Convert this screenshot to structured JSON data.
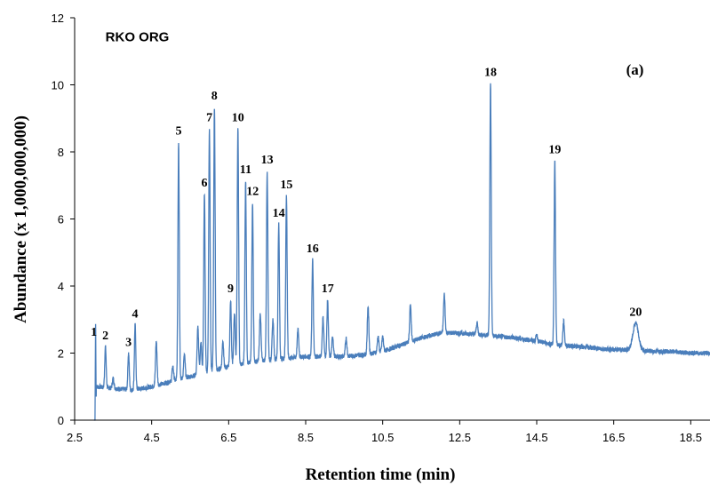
{
  "chart_data": {
    "type": "line",
    "title": "",
    "xlabel": "Retention time  (min)",
    "ylabel": "Abundance (x 1,000,000,000)",
    "xlim": [
      2.5,
      19.0
    ],
    "ylim": [
      0,
      12
    ],
    "x_ticks": [
      "2.5",
      "4.5",
      "6.5",
      "8.5",
      "10.5",
      "12.5",
      "14.5",
      "16.5",
      "18.5"
    ],
    "y_ticks": [
      "0",
      "2",
      "4",
      "6",
      "8",
      "10",
      "12"
    ],
    "grid": false,
    "legend": "none",
    "line_color": "#4a7ebb",
    "annotations": [
      {
        "text": "RKO ORG",
        "x": 3.3,
        "y": 11.3
      },
      {
        "text": "(a)",
        "x": 17.05,
        "y": 10.3
      }
    ],
    "peaks": [
      {
        "label": "1",
        "x": 3.0,
        "y": 2.3
      },
      {
        "label": "2",
        "x": 3.3,
        "y": 2.2
      },
      {
        "label": "3",
        "x": 3.9,
        "y": 2.0
      },
      {
        "label": "4",
        "x": 4.07,
        "y": 2.85
      },
      {
        "label": "5",
        "x": 5.2,
        "y": 8.3
      },
      {
        "label": "6",
        "x": 5.87,
        "y": 6.75
      },
      {
        "label": "7",
        "x": 6.0,
        "y": 8.7
      },
      {
        "label": "8",
        "x": 6.13,
        "y": 9.35
      },
      {
        "label": "9",
        "x": 6.55,
        "y": 3.6
      },
      {
        "label": "10",
        "x": 6.74,
        "y": 8.7
      },
      {
        "label": "11",
        "x": 6.94,
        "y": 7.15
      },
      {
        "label": "12",
        "x": 7.12,
        "y": 6.5
      },
      {
        "label": "13",
        "x": 7.5,
        "y": 7.45
      },
      {
        "label": "14",
        "x": 7.8,
        "y": 5.85
      },
      {
        "label": "15",
        "x": 8.0,
        "y": 6.7
      },
      {
        "label": "16",
        "x": 8.68,
        "y": 4.8
      },
      {
        "label": "17",
        "x": 9.07,
        "y": 3.6
      },
      {
        "label": "18",
        "x": 13.3,
        "y": 10.05
      },
      {
        "label": "19",
        "x": 14.97,
        "y": 7.75
      },
      {
        "label": "20",
        "x": 17.07,
        "y": 2.9
      }
    ],
    "minor_peaks": [
      {
        "x": 3.5,
        "y": 1.25
      },
      {
        "x": 4.62,
        "y": 2.35
      },
      {
        "x": 5.05,
        "y": 1.6
      },
      {
        "x": 5.35,
        "y": 1.95
      },
      {
        "x": 5.7,
        "y": 2.75
      },
      {
        "x": 5.78,
        "y": 2.3
      },
      {
        "x": 6.35,
        "y": 2.3
      },
      {
        "x": 6.65,
        "y": 3.2
      },
      {
        "x": 7.32,
        "y": 3.2
      },
      {
        "x": 7.65,
        "y": 3.0
      },
      {
        "x": 8.3,
        "y": 2.7
      },
      {
        "x": 8.95,
        "y": 3.05
      },
      {
        "x": 9.2,
        "y": 2.5
      },
      {
        "x": 9.55,
        "y": 2.45
      },
      {
        "x": 10.12,
        "y": 3.4
      },
      {
        "x": 10.38,
        "y": 2.5
      },
      {
        "x": 10.5,
        "y": 2.5
      },
      {
        "x": 11.22,
        "y": 3.45
      },
      {
        "x": 12.1,
        "y": 3.75
      },
      {
        "x": 12.95,
        "y": 2.9
      },
      {
        "x": 14.5,
        "y": 2.55
      },
      {
        "x": 15.2,
        "y": 2.95
      }
    ],
    "baseline": [
      {
        "x": 3.0,
        "y": 0.0
      },
      {
        "x": 3.05,
        "y": 1.0
      },
      {
        "x": 3.5,
        "y": 0.95
      },
      {
        "x": 4.0,
        "y": 0.9
      },
      {
        "x": 4.5,
        "y": 1.0
      },
      {
        "x": 5.0,
        "y": 1.15
      },
      {
        "x": 5.5,
        "y": 1.3
      },
      {
        "x": 6.0,
        "y": 1.45
      },
      {
        "x": 6.5,
        "y": 1.6
      },
      {
        "x": 7.0,
        "y": 1.7
      },
      {
        "x": 7.5,
        "y": 1.8
      },
      {
        "x": 8.0,
        "y": 1.85
      },
      {
        "x": 8.5,
        "y": 1.9
      },
      {
        "x": 9.0,
        "y": 1.9
      },
      {
        "x": 9.5,
        "y": 1.9
      },
      {
        "x": 10.0,
        "y": 1.95
      },
      {
        "x": 10.5,
        "y": 2.05
      },
      {
        "x": 11.0,
        "y": 2.25
      },
      {
        "x": 11.5,
        "y": 2.45
      },
      {
        "x": 12.0,
        "y": 2.6
      },
      {
        "x": 12.5,
        "y": 2.6
      },
      {
        "x": 13.0,
        "y": 2.55
      },
      {
        "x": 13.5,
        "y": 2.5
      },
      {
        "x": 14.0,
        "y": 2.45
      },
      {
        "x": 14.5,
        "y": 2.35
      },
      {
        "x": 15.0,
        "y": 2.25
      },
      {
        "x": 15.5,
        "y": 2.2
      },
      {
        "x": 16.0,
        "y": 2.15
      },
      {
        "x": 16.5,
        "y": 2.1
      },
      {
        "x": 17.0,
        "y": 2.1
      },
      {
        "x": 17.5,
        "y": 2.05
      },
      {
        "x": 18.0,
        "y": 2.05
      },
      {
        "x": 18.5,
        "y": 2.0
      },
      {
        "x": 19.0,
        "y": 2.0
      }
    ]
  }
}
